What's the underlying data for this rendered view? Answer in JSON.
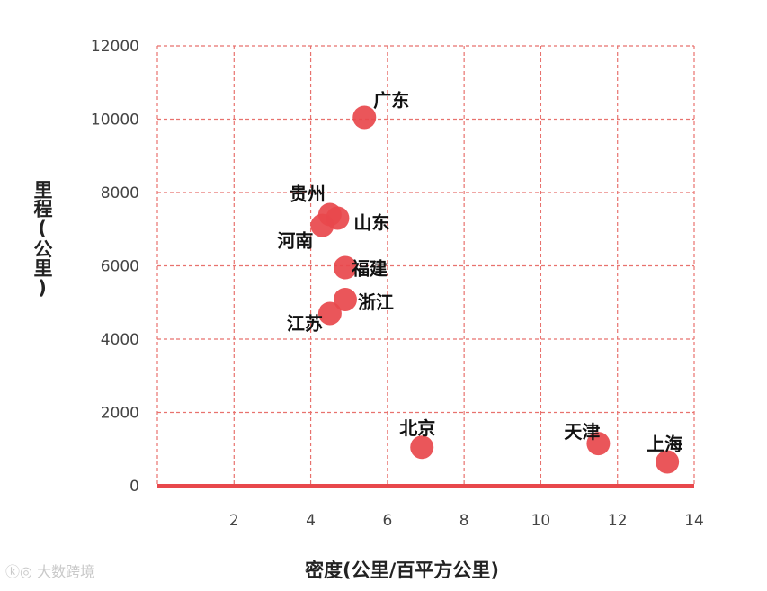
{
  "chart_data": {
    "type": "scatter",
    "xlabel": "密度(公里/百平方公里)",
    "ylabel": "里程(公里)",
    "xlim": [
      0,
      14
    ],
    "ylim": [
      0,
      12000
    ],
    "xticks": [
      2,
      4,
      6,
      8,
      10,
      12,
      14
    ],
    "yticks": [
      0,
      2000,
      4000,
      6000,
      8000,
      10000,
      12000
    ],
    "grid": true,
    "points": [
      {
        "label": "广东",
        "x": 5.4,
        "y": 10050,
        "color": "#e8484c"
      },
      {
        "label": "贵州",
        "x": 4.5,
        "y": 7400,
        "color": "#e8484c"
      },
      {
        "label": "山东",
        "x": 4.7,
        "y": 7300,
        "color": "#e8484c"
      },
      {
        "label": "河南",
        "x": 4.3,
        "y": 7100,
        "color": "#e8484c"
      },
      {
        "label": "福建",
        "x": 4.9,
        "y": 5950,
        "color": "#e8484c"
      },
      {
        "label": "浙江",
        "x": 4.9,
        "y": 5080,
        "color": "#e8484c"
      },
      {
        "label": "江苏",
        "x": 4.5,
        "y": 4700,
        "color": "#e8484c"
      },
      {
        "label": "北京",
        "x": 6.9,
        "y": 1050,
        "color": "#e8484c"
      },
      {
        "label": "天津",
        "x": 11.5,
        "y": 1150,
        "color": "#e8484c"
      },
      {
        "label": "上海",
        "x": 13.3,
        "y": 650,
        "color": "#e8484c"
      }
    ]
  },
  "watermark": "大数跨境"
}
